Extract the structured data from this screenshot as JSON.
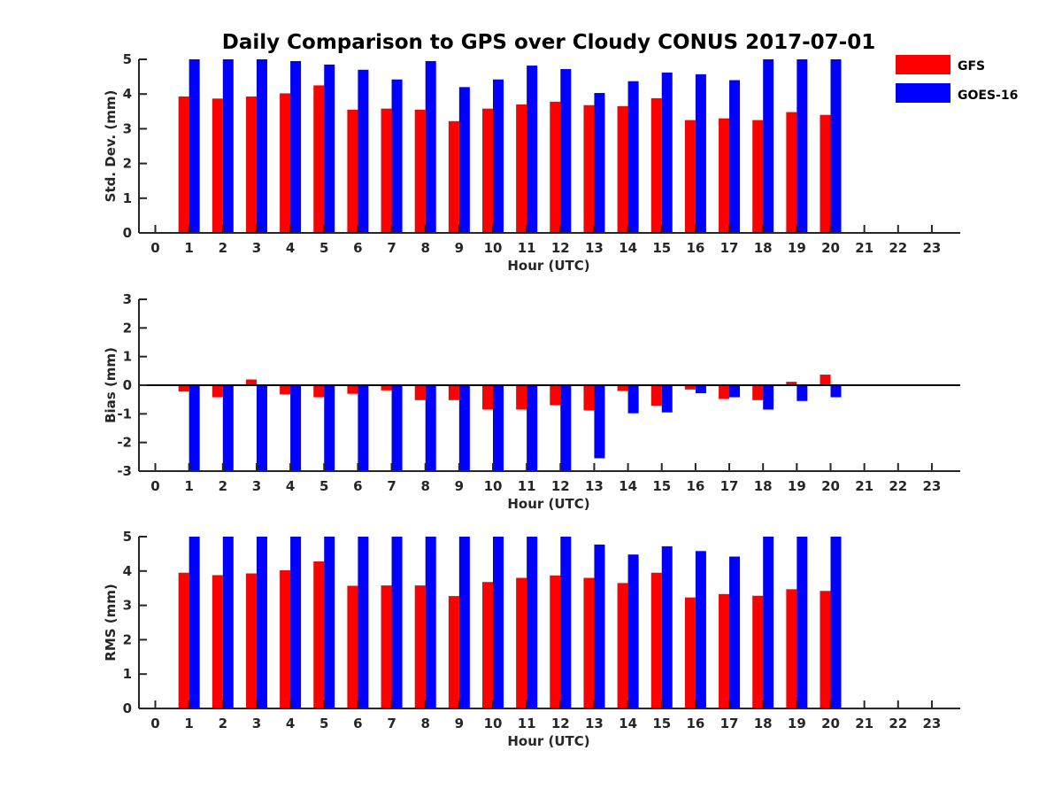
{
  "title": "Daily Comparison to GPS over Cloudy CONUS 2017-07-01",
  "legend": {
    "placement": "top-right",
    "entries": [
      {
        "label": "GFS",
        "color": "#ff0000"
      },
      {
        "label": "GOES-16",
        "color": "#0000ff"
      }
    ]
  },
  "chart_data": [
    {
      "type": "bar",
      "ylabel": "Std. Dev. (mm)",
      "xlabel": "Hour (UTC)",
      "ylim": [
        0,
        5
      ],
      "yticks": [
        0,
        1,
        2,
        3,
        4,
        5
      ],
      "categories": [
        "0",
        "1",
        "2",
        "3",
        "4",
        "5",
        "6",
        "7",
        "8",
        "9",
        "10",
        "11",
        "12",
        "13",
        "14",
        "15",
        "16",
        "17",
        "18",
        "19",
        "20",
        "21",
        "22",
        "23"
      ],
      "series": [
        {
          "name": "GFS",
          "color": "#ff0000",
          "values": [
            null,
            3.93,
            3.87,
            3.93,
            4.02,
            4.25,
            3.55,
            3.58,
            3.55,
            3.22,
            3.58,
            3.7,
            3.78,
            3.68,
            3.65,
            3.88,
            3.25,
            3.3,
            3.25,
            3.48,
            3.4,
            null,
            null,
            null
          ]
        },
        {
          "name": "GOES-16",
          "color": "#0000ff",
          "values": [
            null,
            5.0,
            5.0,
            5.0,
            4.95,
            4.85,
            4.7,
            4.42,
            4.95,
            4.2,
            4.42,
            4.82,
            4.72,
            4.03,
            4.37,
            4.62,
            4.57,
            4.4,
            5.0,
            5.0,
            5.0,
            null,
            null,
            null
          ]
        }
      ]
    },
    {
      "type": "bar",
      "ylabel": "Bias (mm)",
      "xlabel": "Hour (UTC)",
      "ylim": [
        -3,
        3
      ],
      "yticks": [
        -3,
        -2,
        -1,
        0,
        1,
        2,
        3
      ],
      "zero_line": true,
      "categories": [
        "0",
        "1",
        "2",
        "3",
        "4",
        "5",
        "6",
        "7",
        "8",
        "9",
        "10",
        "11",
        "12",
        "13",
        "14",
        "15",
        "16",
        "17",
        "18",
        "19",
        "20",
        "21",
        "22",
        "23"
      ],
      "series": [
        {
          "name": "GFS",
          "color": "#ff0000",
          "values": [
            null,
            -0.22,
            -0.42,
            0.2,
            -0.32,
            -0.42,
            -0.3,
            -0.18,
            -0.52,
            -0.52,
            -0.85,
            -0.85,
            -0.7,
            -0.88,
            -0.2,
            -0.72,
            -0.15,
            -0.48,
            -0.52,
            0.12,
            0.37,
            null,
            null,
            null
          ]
        },
        {
          "name": "GOES-16",
          "color": "#0000ff",
          "values": [
            null,
            -3.0,
            -3.0,
            -3.0,
            -3.0,
            -3.0,
            -3.0,
            -3.0,
            -3.0,
            -3.0,
            -3.0,
            -3.0,
            -3.0,
            -2.55,
            -0.98,
            -0.95,
            -0.28,
            -0.42,
            -0.85,
            -0.55,
            -0.42,
            null,
            null,
            null
          ]
        }
      ]
    },
    {
      "type": "bar",
      "ylabel": "RMS (mm)",
      "xlabel": "Hour (UTC)",
      "ylim": [
        0,
        5
      ],
      "yticks": [
        0,
        1,
        2,
        3,
        4,
        5
      ],
      "categories": [
        "0",
        "1",
        "2",
        "3",
        "4",
        "5",
        "6",
        "7",
        "8",
        "9",
        "10",
        "11",
        "12",
        "13",
        "14",
        "15",
        "16",
        "17",
        "18",
        "19",
        "20",
        "21",
        "22",
        "23"
      ],
      "series": [
        {
          "name": "GFS",
          "color": "#ff0000",
          "values": [
            null,
            3.95,
            3.88,
            3.93,
            4.02,
            4.28,
            3.57,
            3.58,
            3.58,
            3.27,
            3.68,
            3.8,
            3.87,
            3.8,
            3.65,
            3.95,
            3.23,
            3.33,
            3.28,
            3.47,
            3.42,
            null,
            null,
            null
          ]
        },
        {
          "name": "GOES-16",
          "color": "#0000ff",
          "values": [
            null,
            5.0,
            5.0,
            5.0,
            5.0,
            5.0,
            5.0,
            5.0,
            5.0,
            5.0,
            5.0,
            5.0,
            5.0,
            4.77,
            4.48,
            4.72,
            4.58,
            4.42,
            5.0,
            5.0,
            5.0,
            null,
            null,
            null
          ]
        }
      ]
    }
  ]
}
